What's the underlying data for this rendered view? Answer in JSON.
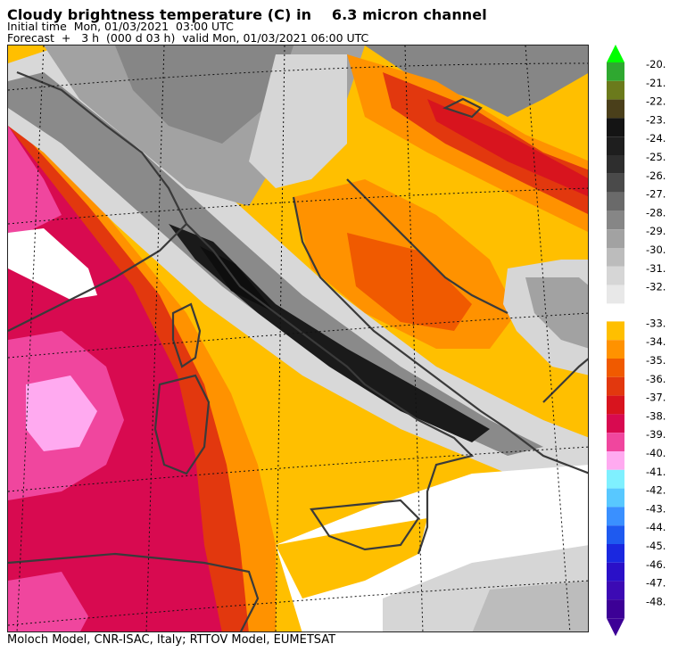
{
  "header": {
    "title": "Cloudy brightness temperature (C) in    6.3 micron channel",
    "initial_time": "Initial time  Mon, 01/03/2021  03:00 UTC",
    "forecast": "Forecast  +   3 h  (000 d 03 h)  valid Mon, 01/03/2021 06:00 UTC"
  },
  "footer": {
    "credit": "Moloch Model, CNR-ISAC, Italy; RTTOV Model, EUMETSAT"
  },
  "legend": {
    "labels": [
      "-20.",
      "-21.",
      "-22.",
      "-23.",
      "-24.",
      "-25.",
      "-26.",
      "-27.",
      "-28.",
      "-29.",
      "-30.",
      "-31.",
      "-32.",
      "-33.",
      "-34.",
      "-35.",
      "-36.",
      "-37.",
      "-38.",
      "-39.",
      "-40.",
      "-41.",
      "-42.",
      "-43.",
      "-44.",
      "-45.",
      "-46.",
      "-47.",
      "-48."
    ],
    "colors": [
      "#2fa830",
      "#6b7a1c",
      "#4a3f1a",
      "#141414",
      "#1e1e1e",
      "#2e2e2e",
      "#4a4a4a",
      "#6a6a6a",
      "#868686",
      "#a2a2a2",
      "#bcbcbc",
      "#d6d6d6",
      "#e8e8e8",
      "#ffbf00",
      "#ff9200",
      "#f05a00",
      "#e2380e",
      "#d8141e",
      "#d80a50",
      "#f0469e",
      "#ffaaf0",
      "#7ff0ff",
      "#58c8ff",
      "#3a90ff",
      "#1e5af0",
      "#1a28e0",
      "#2a10c8",
      "#3c0ab4",
      "#3c0096"
    ],
    "top_arrow_color": "#00ff00",
    "bottom_arrow_color": "#3c0096"
  }
}
